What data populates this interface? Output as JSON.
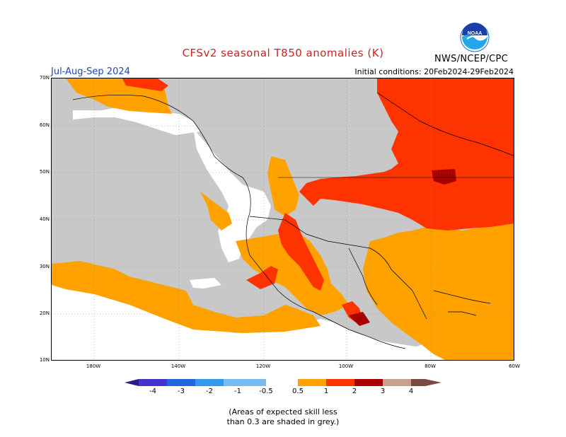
{
  "title": "CFSv2 seasonal T850 anomalies (K)",
  "season": "Jul-Aug-Sep 2024",
  "initial_conditions": "Initial conditions: 20Feb2024-29Feb2024",
  "org_label": "NWS/NCEP/CPC",
  "logo_text": "NOAA",
  "lat_labels": [
    "70N",
    "60N",
    "50N",
    "40N",
    "30N",
    "20N",
    "10N"
  ],
  "lon_labels": [
    "180W",
    "140W",
    "120W",
    "100W",
    "80W",
    "60W"
  ],
  "legend": {
    "labels": [
      "-4",
      "-3",
      "-2",
      "-1",
      "-0.5",
      "0.5",
      "1",
      "2",
      "3",
      "4"
    ],
    "colors": {
      "lt_neg4": "#2c1a8c",
      "neg4_neg3": "#4433cc",
      "neg3_neg2": "#2266dd",
      "neg2_neg1": "#3399ee",
      "neg1_neg05": "#77bbf0",
      "neutral": "#ffffff",
      "pos05_1": "#ffa200",
      "pos1_2": "#ff3300",
      "pos2_3": "#a80000",
      "pos3_4": "#c8a090",
      "gt4": "#7a4a40"
    }
  },
  "map_colors": {
    "low_skill_grey": "#c8c8c8",
    "ocean_white": "#ffffff",
    "light_orange": "#ffa200",
    "red": "#ff3300",
    "dark_red": "#a80000"
  },
  "note_lines": [
    "(Areas of expected skill less",
    "than 0.3 are shaded in grey.)"
  ]
}
